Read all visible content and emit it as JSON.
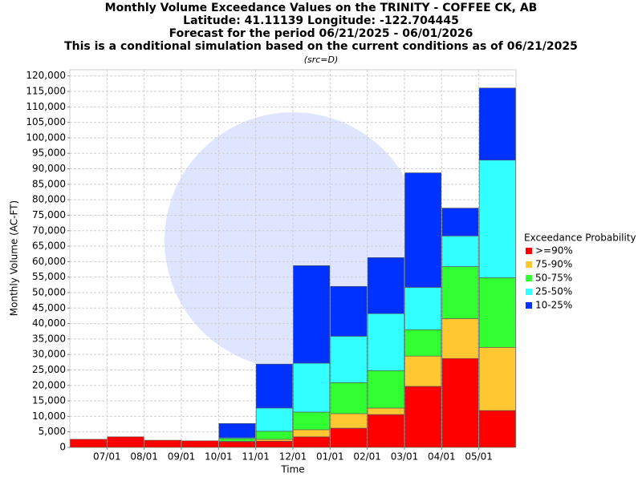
{
  "chart_data": {
    "type": "stacked_bar",
    "title": [
      "Monthly Volume Exceedance Values on the TRINITY - COFFEE CK, AB",
      "Latitude: 41.11139 Longitude: -122.704445",
      "Forecast for the period 06/21/2025 - 06/01/2026",
      "This is a conditional simulation based on the current conditions as of 06/21/2025"
    ],
    "subtitle": "(src=D)",
    "x_label": "Time",
    "y_label": "Monthly Volume (AC-FT)",
    "legend_title": "Exceedance Probability",
    "categories": [
      null,
      "07/01",
      "08/01",
      "09/01",
      "10/01",
      "11/01",
      "12/01",
      "01/01",
      "02/01",
      "03/01",
      "04/01",
      "05/01"
    ],
    "series": [
      {
        "name": ">=90%",
        "color": "#ff0000",
        "values": [
          2600,
          3400,
          2300,
          2100,
          1800,
          2000,
          3400,
          6200,
          10600,
          19700,
          28700,
          11900
        ]
      },
      {
        "name": "75-90%",
        "color": "#ffc832",
        "values": [
          0,
          0,
          0,
          0,
          200,
          600,
          2300,
          4700,
          2100,
          9800,
          12900,
          20400
        ]
      },
      {
        "name": "50-75%",
        "color": "#32ff32",
        "values": [
          0,
          0,
          0,
          0,
          800,
          2600,
          5700,
          10000,
          12100,
          8500,
          16800,
          22500
        ]
      },
      {
        "name": "25-50%",
        "color": "#32ffff",
        "values": [
          0,
          0,
          0,
          0,
          300,
          7500,
          15800,
          15000,
          18400,
          13700,
          9900,
          38000
        ]
      },
      {
        "name": "10-25%",
        "color": "#0032ff",
        "values": [
          0,
          0,
          0,
          0,
          4600,
          14200,
          31500,
          16100,
          18100,
          37000,
          9000,
          23300
        ]
      }
    ],
    "ylim": [
      0,
      122000
    ],
    "yticks": [
      0,
      {
        "value": 5000,
        "label": "5,000"
      },
      {
        "value": 10000,
        "label": "10,000"
      },
      {
        "value": 15000,
        "label": "15,000"
      },
      {
        "value": 20000,
        "label": "20,000"
      },
      {
        "value": 25000,
        "label": "25,000"
      },
      {
        "value": 30000,
        "label": "30,000"
      },
      {
        "value": 35000,
        "label": "35,000"
      },
      {
        "value": 40000,
        "label": "40,000"
      },
      {
        "value": 45000,
        "label": "45,000"
      },
      {
        "value": 50000,
        "label": "50,000"
      },
      {
        "value": 55000,
        "label": "55,000"
      },
      {
        "value": 60000,
        "label": "60,000"
      },
      {
        "value": 65000,
        "label": "65,000"
      },
      {
        "value": 70000,
        "label": "70,000"
      },
      {
        "value": 75000,
        "label": "75,000"
      },
      {
        "value": 80000,
        "label": "80,000"
      },
      {
        "value": 85000,
        "label": "85,000"
      },
      {
        "value": 90000,
        "label": "90,000"
      },
      {
        "value": 95000,
        "label": "95,000"
      },
      {
        "value": 100000,
        "label": "100,000"
      },
      {
        "value": 105000,
        "label": "105,000"
      },
      {
        "value": 110000,
        "label": "110,000"
      },
      {
        "value": 115000,
        "label": "115,000"
      },
      {
        "value": 120000,
        "label": "120,000"
      }
    ],
    "grid": true
  }
}
